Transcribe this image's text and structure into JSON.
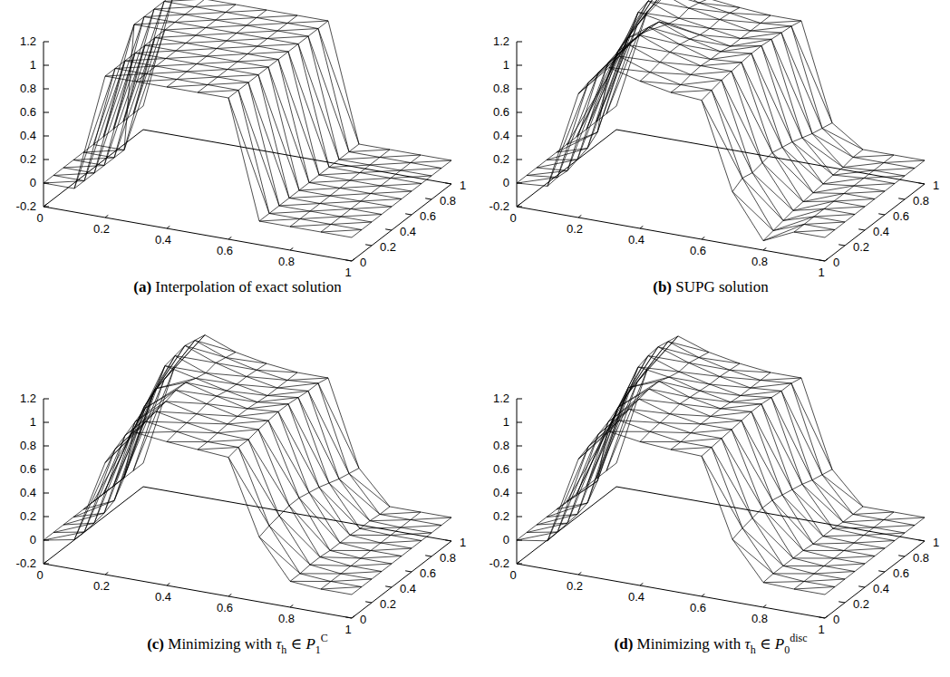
{
  "chart_data": [
    {
      "type": "surface",
      "panel": "(a)",
      "title": [
        "Interpolation of exact solution"
      ],
      "xlim": [
        0,
        1
      ],
      "xticks": [
        0,
        0.2,
        0.4,
        0.6,
        0.8,
        1
      ],
      "ylim": [
        0,
        1
      ],
      "yticks": [
        0,
        0.2,
        0.4,
        0.6,
        0.8,
        1
      ],
      "zlim": [
        -0.2,
        1.2
      ],
      "zticks": [
        -0.2,
        0,
        0.2,
        0.4,
        0.6,
        0.8,
        1,
        1.2
      ],
      "x": [
        0,
        0.1,
        0.2,
        0.3,
        0.4,
        0.5,
        0.6,
        0.7,
        0.8,
        0.9,
        1
      ],
      "y": [
        0,
        0.1,
        0.2,
        0.3,
        0.4,
        0.5,
        0.6,
        0.7,
        0.8,
        0.9,
        1
      ],
      "z": [
        [
          0,
          0,
          1,
          1,
          1,
          1,
          1,
          0,
          0,
          0,
          0
        ],
        [
          0,
          0,
          1,
          1,
          1,
          1,
          1,
          0,
          0,
          0,
          0
        ],
        [
          0,
          0,
          1,
          1,
          1,
          1,
          1,
          0,
          0,
          0,
          0
        ],
        [
          0,
          0,
          1,
          1,
          1,
          1,
          1,
          0,
          0,
          0,
          0
        ],
        [
          0,
          0,
          1,
          1,
          1,
          1,
          1,
          0,
          0,
          0,
          0
        ],
        [
          0,
          0,
          1,
          1,
          1,
          1,
          1,
          0,
          0,
          0,
          0
        ],
        [
          0,
          1,
          1,
          1,
          1,
          1,
          1,
          0,
          0,
          0,
          0
        ],
        [
          0,
          1,
          1,
          1,
          1,
          1,
          1,
          0,
          0,
          0,
          0
        ],
        [
          0,
          1,
          1,
          1,
          1,
          1,
          1,
          0,
          0,
          0,
          0
        ],
        [
          0,
          1,
          1,
          1,
          1,
          1,
          1,
          0,
          0,
          0,
          0
        ],
        [
          0,
          1,
          1,
          1,
          1,
          1,
          1,
          0,
          0,
          0,
          0
        ]
      ]
    },
    {
      "type": "surface",
      "panel": "(b)",
      "title": [
        "SUPG solution"
      ],
      "xlim": [
        0,
        1
      ],
      "xticks": [
        0,
        0.2,
        0.4,
        0.6,
        0.8,
        1
      ],
      "ylim": [
        0,
        1
      ],
      "yticks": [
        0,
        0.2,
        0.4,
        0.6,
        0.8,
        1
      ],
      "zlim": [
        -0.2,
        1.2
      ],
      "zticks": [
        -0.2,
        0,
        0.2,
        0.4,
        0.6,
        0.8,
        1,
        1.2
      ],
      "x": [
        0,
        0.1,
        0.2,
        0.3,
        0.4,
        0.5,
        0.6,
        0.7,
        0.8,
        0.9,
        1
      ],
      "y": [
        0,
        0.1,
        0.2,
        0.3,
        0.4,
        0.5,
        0.6,
        0.7,
        0.8,
        0.9,
        1
      ],
      "z": [
        [
          0,
          0.02,
          0.85,
          1.12,
          1.05,
          1.0,
          0.98,
          0.25,
          -0.12,
          0,
          0
        ],
        [
          0,
          0.03,
          0.88,
          1.15,
          1.06,
          1.0,
          1.0,
          0.3,
          -0.1,
          0,
          0
        ],
        [
          0,
          0.02,
          0.9,
          1.18,
          1.08,
          1.02,
          1.02,
          0.28,
          -0.08,
          0,
          0
        ],
        [
          0,
          0.05,
          0.92,
          1.2,
          1.1,
          1.03,
          1.03,
          0.3,
          -0.06,
          0,
          0
        ],
        [
          0,
          0.08,
          0.95,
          1.2,
          1.1,
          1.02,
          1.04,
          0.32,
          -0.05,
          0,
          0
        ],
        [
          0,
          0.15,
          1.0,
          1.18,
          1.08,
          1.02,
          1.05,
          0.3,
          -0.04,
          0,
          0
        ],
        [
          0,
          0.55,
          1.15,
          1.1,
          1.05,
          1.0,
          1.05,
          0.28,
          -0.03,
          0,
          0
        ],
        [
          0,
          0.7,
          1.18,
          1.08,
          1.04,
          1.0,
          1.04,
          0.25,
          -0.02,
          0,
          0
        ],
        [
          0,
          0.75,
          1.2,
          1.1,
          1.05,
          1.0,
          1.03,
          0.22,
          -0.02,
          0,
          0
        ],
        [
          0,
          0.8,
          1.18,
          1.08,
          1.04,
          1.0,
          1.02,
          0.2,
          0,
          0,
          0
        ],
        [
          0,
          0.85,
          1.15,
          1.05,
          1.02,
          1.0,
          1.0,
          0.18,
          0,
          0,
          0
        ]
      ]
    },
    {
      "type": "surface",
      "panel": "(c)",
      "title": [
        "Minimizing with ",
        {
          "text": "τ",
          "sub": "h"
        },
        " ∈ ",
        {
          "text": "P",
          "sub": "1",
          "sup": "C"
        }
      ],
      "xlim": [
        0,
        1
      ],
      "xticks": [
        0,
        0.2,
        0.4,
        0.6,
        0.8,
        1
      ],
      "ylim": [
        0,
        1
      ],
      "yticks": [
        0,
        0.2,
        0.4,
        0.6,
        0.8,
        1
      ],
      "zlim": [
        -0.2,
        1.2
      ],
      "zticks": [
        -0.2,
        0,
        0.2,
        0.4,
        0.6,
        0.8,
        1,
        1.2
      ],
      "x": [
        0,
        0.1,
        0.2,
        0.3,
        0.4,
        0.5,
        0.6,
        0.7,
        0.8,
        0.9,
        1
      ],
      "y": [
        0,
        0.1,
        0.2,
        0.3,
        0.4,
        0.5,
        0.6,
        0.7,
        0.8,
        0.9,
        1
      ],
      "z": [
        [
          0,
          0.05,
          0.75,
          1.05,
          1.02,
          1.0,
          0.98,
          0.35,
          0.02,
          0,
          0
        ],
        [
          0,
          0.05,
          0.8,
          1.08,
          1.04,
          1.0,
          1.0,
          0.38,
          0.02,
          0,
          0
        ],
        [
          0,
          0.06,
          0.85,
          1.1,
          1.05,
          1.01,
          1.0,
          0.4,
          0.03,
          0,
          0
        ],
        [
          0,
          0.08,
          0.9,
          1.12,
          1.06,
          1.02,
          1.02,
          0.42,
          0.03,
          0,
          0
        ],
        [
          0,
          0.12,
          0.95,
          1.15,
          1.08,
          1.02,
          1.03,
          0.42,
          0.02,
          0,
          0
        ],
        [
          0,
          0.25,
          1.05,
          1.15,
          1.08,
          1.02,
          1.04,
          0.4,
          0.02,
          0,
          0
        ],
        [
          0,
          0.6,
          1.18,
          1.12,
          1.06,
          1.01,
          1.04,
          0.38,
          0.02,
          0,
          0
        ],
        [
          0,
          0.72,
          1.2,
          1.1,
          1.05,
          1.0,
          1.03,
          0.35,
          0.01,
          0,
          0
        ],
        [
          0,
          0.78,
          1.22,
          1.12,
          1.05,
          1.0,
          1.02,
          0.32,
          0.01,
          0,
          0
        ],
        [
          0,
          0.82,
          1.2,
          1.1,
          1.04,
          1.0,
          1.02,
          0.3,
          0,
          0,
          0
        ],
        [
          0,
          0.85,
          1.18,
          1.08,
          1.03,
          1.0,
          1.0,
          0.28,
          0,
          0,
          0
        ]
      ]
    },
    {
      "type": "surface",
      "panel": "(d)",
      "title": [
        "Minimizing with ",
        {
          "text": "τ",
          "sub": "h"
        },
        " ∈ ",
        {
          "text": "P",
          "sub": "0",
          "sup": "disc"
        }
      ],
      "xlim": [
        0,
        1
      ],
      "xticks": [
        0,
        0.2,
        0.4,
        0.6,
        0.8,
        1
      ],
      "ylim": [
        0,
        1
      ],
      "yticks": [
        0,
        0.2,
        0.4,
        0.6,
        0.8,
        1
      ],
      "zlim": [
        -0.2,
        1.2
      ],
      "zticks": [
        -0.2,
        0,
        0.2,
        0.4,
        0.6,
        0.8,
        1,
        1.2
      ],
      "x": [
        0,
        0.1,
        0.2,
        0.3,
        0.4,
        0.5,
        0.6,
        0.7,
        0.8,
        0.9,
        1
      ],
      "y": [
        0,
        0.1,
        0.2,
        0.3,
        0.4,
        0.5,
        0.6,
        0.7,
        0.8,
        0.9,
        1
      ],
      "z": [
        [
          0,
          0.04,
          0.78,
          1.06,
          1.02,
          1.0,
          0.99,
          0.33,
          0.01,
          0,
          0
        ],
        [
          0,
          0.05,
          0.82,
          1.09,
          1.04,
          1.0,
          1.0,
          0.36,
          0.02,
          0,
          0
        ],
        [
          0,
          0.06,
          0.86,
          1.12,
          1.05,
          1.01,
          1.01,
          0.38,
          0.02,
          0,
          0
        ],
        [
          0,
          0.07,
          0.9,
          1.14,
          1.06,
          1.02,
          1.02,
          0.4,
          0.02,
          0,
          0
        ],
        [
          0,
          0.1,
          0.96,
          1.16,
          1.08,
          1.02,
          1.03,
          0.4,
          0.02,
          0,
          0
        ],
        [
          0,
          0.22,
          1.06,
          1.16,
          1.07,
          1.02,
          1.04,
          0.38,
          0.01,
          0,
          0
        ],
        [
          0,
          0.58,
          1.17,
          1.13,
          1.06,
          1.01,
          1.04,
          0.36,
          0.01,
          0,
          0
        ],
        [
          0,
          0.7,
          1.2,
          1.11,
          1.05,
          1.0,
          1.03,
          0.34,
          0.01,
          0,
          0
        ],
        [
          0,
          0.76,
          1.21,
          1.12,
          1.05,
          1.0,
          1.02,
          0.31,
          0,
          0,
          0
        ],
        [
          0,
          0.8,
          1.19,
          1.1,
          1.04,
          1.0,
          1.02,
          0.29,
          0,
          0,
          0
        ],
        [
          0,
          0.84,
          1.17,
          1.08,
          1.03,
          1.0,
          1.0,
          0.27,
          0,
          0,
          0
        ]
      ]
    }
  ]
}
